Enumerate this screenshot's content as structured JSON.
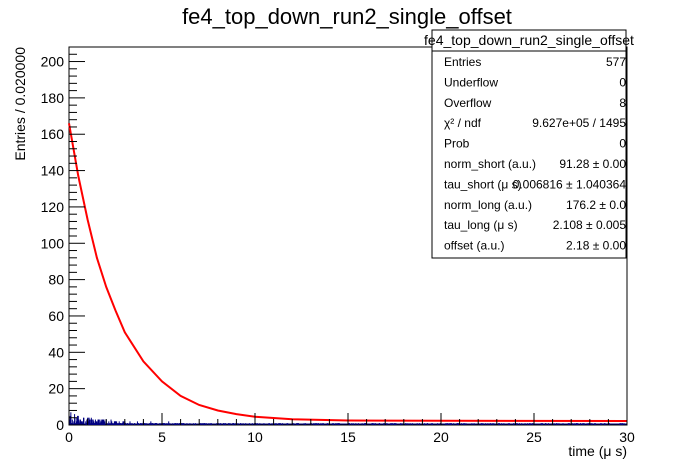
{
  "chart_data": {
    "type": "histogram",
    "title": "fe4_top_down_run2_single_offset",
    "xlabel": "time (μ s)",
    "ylabel": "Entries / 0.020000",
    "xlim": [
      0,
      30
    ],
    "ylim": [
      0,
      208
    ],
    "x_ticks": [
      "0",
      "5",
      "10",
      "15",
      "20",
      "25",
      "30"
    ],
    "y_ticks": [
      "0",
      "20",
      "40",
      "60",
      "80",
      "100",
      "120",
      "140",
      "160",
      "180",
      "200"
    ],
    "bin_width": 0.02,
    "histogram_color": "#000080",
    "fit_color": "#ff0000",
    "histogram_sample": [
      {
        "x": 0.1,
        "y": 7
      },
      {
        "x": 0.3,
        "y": 6
      },
      {
        "x": 0.5,
        "y": 5
      },
      {
        "x": 0.8,
        "y": 4
      },
      {
        "x": 1.2,
        "y": 4
      },
      {
        "x": 1.6,
        "y": 3
      },
      {
        "x": 2.0,
        "y": 3
      },
      {
        "x": 2.5,
        "y": 2
      },
      {
        "x": 3.0,
        "y": 2
      },
      {
        "x": 4.0,
        "y": 2
      },
      {
        "x": 5.0,
        "y": 2
      },
      {
        "x": 6.0,
        "y": 1
      },
      {
        "x": 8.0,
        "y": 1
      },
      {
        "x": 10.0,
        "y": 1
      },
      {
        "x": 15.0,
        "y": 1
      },
      {
        "x": 20.0,
        "y": 1
      },
      {
        "x": 25.0,
        "y": 1
      }
    ],
    "fit_curve": [
      {
        "x": 0.0,
        "y": 166
      },
      {
        "x": 0.5,
        "y": 137
      },
      {
        "x": 1.0,
        "y": 113
      },
      {
        "x": 1.5,
        "y": 92
      },
      {
        "x": 2.0,
        "y": 76
      },
      {
        "x": 2.5,
        "y": 63
      },
      {
        "x": 3.0,
        "y": 51
      },
      {
        "x": 4.0,
        "y": 35
      },
      {
        "x": 5.0,
        "y": 24
      },
      {
        "x": 6.0,
        "y": 16
      },
      {
        "x": 7.0,
        "y": 11
      },
      {
        "x": 8.0,
        "y": 8
      },
      {
        "x": 9.0,
        "y": 6
      },
      {
        "x": 10.0,
        "y": 4.5
      },
      {
        "x": 12.0,
        "y": 3.2
      },
      {
        "x": 15.0,
        "y": 2.5
      },
      {
        "x": 20.0,
        "y": 2.3
      },
      {
        "x": 30.0,
        "y": 2.2
      }
    ],
    "stats": {
      "name": "fe4_top_down_run2_single_offset",
      "rows": [
        {
          "label": "Entries",
          "value": "577"
        },
        {
          "label": "Underflow",
          "value": "0"
        },
        {
          "label": "Overflow",
          "value": "8"
        },
        {
          "label": "χ² / ndf",
          "value": "9.627e+05 / 1495"
        },
        {
          "label": "Prob",
          "value": "0"
        },
        {
          "label": "norm_short (a.u.)",
          "value": "91.28 ± 0.00"
        },
        {
          "label": "tau_short (μ s)",
          "value": "0.006816 ± 1.040364"
        },
        {
          "label": "norm_long (a.u.)",
          "value": "176.2 ± 0.0"
        },
        {
          "label": "tau_long (μ s)",
          "value": "2.108 ± 0.005"
        },
        {
          "label": "offset (a.u.)",
          "value": "2.18 ± 0.00"
        }
      ]
    }
  }
}
